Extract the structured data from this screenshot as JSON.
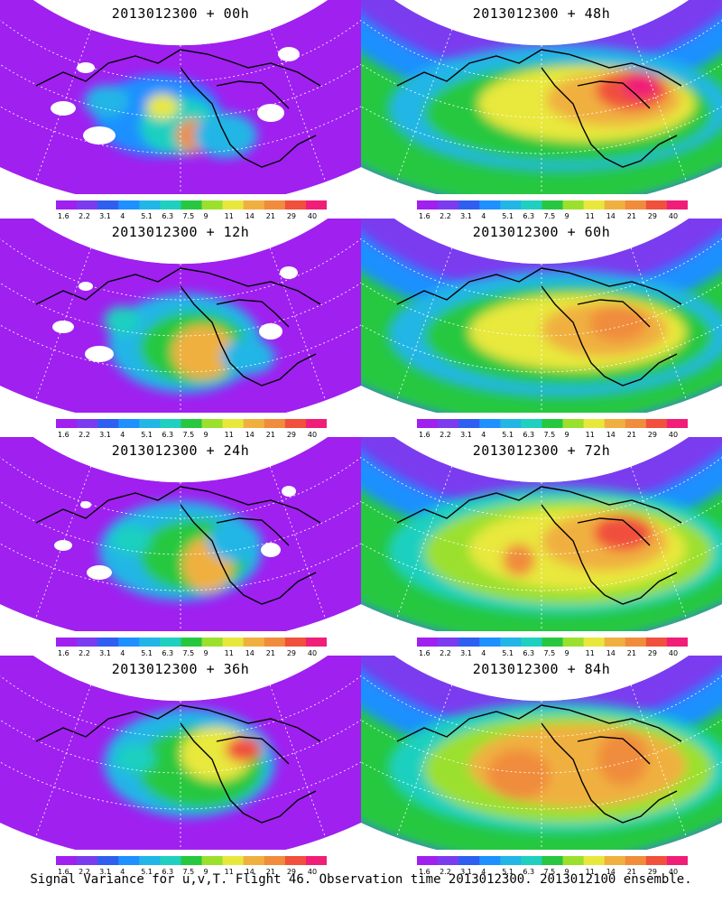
{
  "panels": [
    {
      "title": "2013012300 + 00h"
    },
    {
      "title": "2013012300 + 48h"
    },
    {
      "title": "2013012300 + 12h"
    },
    {
      "title": "2013012300 + 60h"
    },
    {
      "title": "2013012300 + 24h"
    },
    {
      "title": "2013012300 + 72h"
    },
    {
      "title": "2013012300 + 36h"
    },
    {
      "title": "2013012300 + 84h"
    }
  ],
  "colorbar": {
    "labels": [
      "1.6",
      "2.2",
      "3.1",
      "4",
      "5.1",
      "6.3",
      "7.5",
      "9",
      "11",
      "14",
      "21",
      "29",
      "40"
    ],
    "colors": [
      "#a020f0",
      "#7b3cf0",
      "#2f5ff0",
      "#1e90ff",
      "#22b6e6",
      "#1fd0c0",
      "#27c840",
      "#9be02d",
      "#e8e83c",
      "#f0b040",
      "#f08c3c",
      "#f0503c",
      "#f01e78"
    ]
  },
  "footer": "Signal Variance for u,v,T. Flight 46. Observation time 2013012300. 2013012100 ensemble."
}
